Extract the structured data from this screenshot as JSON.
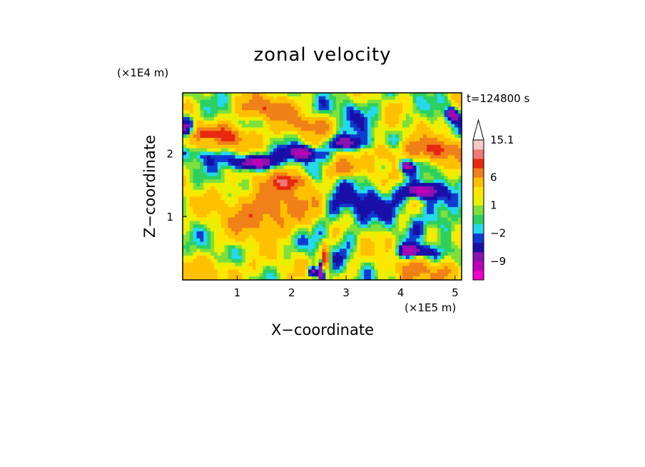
{
  "chart_data": {
    "type": "heatmap",
    "title": "zonal velocity",
    "xlabel": "X−coordinate",
    "ylabel": "Z−coordinate",
    "x_unit": "(×1E5 m)",
    "y_unit": "(×1E4 m)",
    "time_label": "t=124800 s",
    "xlim": [
      0,
      5.12
    ],
    "ylim": [
      0,
      2.95
    ],
    "x_ticks": [
      "1",
      "2",
      "3",
      "4",
      "5"
    ],
    "y_ticks": [
      "1",
      "2"
    ],
    "grid": false,
    "colorbar": {
      "levels": [
        -15,
        -12,
        -9,
        -6,
        -3,
        -2,
        -1,
        0,
        1,
        2,
        3,
        6,
        9,
        12,
        15.1
      ],
      "labels": [
        "15.1",
        "6",
        "1",
        "−2",
        "−9"
      ],
      "colors": [
        "#ee00cc",
        "#c000b8",
        "#8a12b0",
        "#1a0fa8",
        "#0f3cd0",
        "#25d8ee",
        "#2cd060",
        "#7ee03a",
        "#e8f000",
        "#ffe600",
        "#ffc000",
        "#f08018",
        "#e82810",
        "#f07878",
        "#f8c8c8"
      ],
      "extend": "max"
    },
    "features": [
      {
        "x": 0.6,
        "z": 2.25,
        "v": 10,
        "sx": 0.5,
        "sz": 0.12
      },
      {
        "x": 1.3,
        "z": 1.85,
        "v": -14,
        "sx": 0.28,
        "sz": 0.08
      },
      {
        "x": 0.5,
        "z": 2.0,
        "v": -4,
        "sx": 0.35,
        "sz": 0.1
      },
      {
        "x": 1.6,
        "z": 1.1,
        "v": 8,
        "sx": 0.5,
        "sz": 0.3
      },
      {
        "x": 0.05,
        "z": 2.4,
        "v": -12,
        "sx": 0.1,
        "sz": 0.12
      },
      {
        "x": 0.5,
        "z": 2.2,
        "v": -11,
        "sx": 0.12,
        "sz": 0.05
      },
      {
        "x": 2.2,
        "z": 2.0,
        "v": -12,
        "sx": 0.2,
        "sz": 0.08
      },
      {
        "x": 3.0,
        "z": 2.15,
        "v": -10,
        "sx": 0.22,
        "sz": 0.08
      },
      {
        "x": 4.4,
        "z": 1.4,
        "v": -13,
        "sx": 0.2,
        "sz": 0.08
      },
      {
        "x": 4.1,
        "z": 1.8,
        "v": -10,
        "sx": 0.08,
        "sz": 0.06
      },
      {
        "x": 4.25,
        "z": 0.45,
        "v": -11,
        "sx": 0.2,
        "sz": 0.07
      },
      {
        "x": 3.6,
        "z": 1.25,
        "v": -4,
        "sx": 0.45,
        "sz": 0.2
      },
      {
        "x": 4.7,
        "z": 1.1,
        "v": -3,
        "sx": 0.3,
        "sz": 0.2
      },
      {
        "x": 2.6,
        "z": 0.35,
        "v": 11,
        "sx": 0.05,
        "sz": 0.15
      },
      {
        "x": 2.55,
        "z": 0.15,
        "v": -14,
        "sx": 0.03,
        "sz": 0.15
      },
      {
        "x": 2.4,
        "z": 0.12,
        "v": -11,
        "sx": 0.08,
        "sz": 0.06
      },
      {
        "x": 4.6,
        "z": 2.05,
        "v": 8,
        "sx": 0.35,
        "sz": 0.12
      },
      {
        "x": 4.95,
        "z": 2.6,
        "v": -11,
        "sx": 0.08,
        "sz": 0.07
      },
      {
        "x": 1.5,
        "z": 2.7,
        "v": 7,
        "sx": 0.35,
        "sz": 0.12
      },
      {
        "x": 2.35,
        "z": 2.45,
        "v": 6,
        "sx": 0.3,
        "sz": 0.1
      },
      {
        "x": 2.0,
        "z": 1.55,
        "v": 7,
        "sx": 0.25,
        "sz": 0.08
      },
      {
        "x": 2.9,
        "z": 1.75,
        "v": 5,
        "sx": 0.25,
        "sz": 0.08
      },
      {
        "x": 3.7,
        "z": 2.0,
        "v": 6,
        "sx": 0.15,
        "sz": 0.1
      },
      {
        "x": 3.2,
        "z": 2.65,
        "v": -3,
        "sx": 0.3,
        "sz": 0.2
      },
      {
        "x": 0.8,
        "z": 0.15,
        "v": 3,
        "sx": 0.4,
        "sz": 0.12
      },
      {
        "x": 4.6,
        "z": 0.15,
        "v": 6,
        "sx": 0.4,
        "sz": 0.12
      },
      {
        "x": 1.9,
        "z": 0.6,
        "v": -2,
        "sx": 0.4,
        "sz": 0.15
      },
      {
        "x": 4.85,
        "z": 0.85,
        "v": -3,
        "sx": 0.2,
        "sz": 0.12
      },
      {
        "x": 2.9,
        "z": 1.0,
        "v": -3,
        "sx": 0.3,
        "sz": 0.3
      }
    ]
  }
}
